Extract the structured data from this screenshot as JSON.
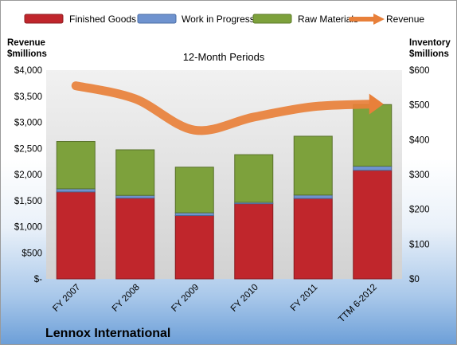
{
  "chart_data": {
    "type": "bar",
    "stacked": true,
    "title": "Lennox International",
    "subtitle": "12-Month Periods",
    "categories": [
      "FY 2007",
      "FY 2008",
      "FY 2009",
      "FY 2010",
      "FY 2011",
      "TTM 6-2012"
    ],
    "left_axis": {
      "label_line1": "Revenue",
      "label_line2": "$millions",
      "ylim": [
        0,
        4000
      ],
      "ticks": [
        0,
        500,
        1000,
        1500,
        2000,
        2500,
        3000,
        3500,
        4000
      ],
      "tick_labels": [
        "$-",
        "$500",
        "$1,000",
        "$1,500",
        "$2,000",
        "$2,500",
        "$3,000",
        "$3,500",
        "$4,000"
      ]
    },
    "right_axis": {
      "label_line1": "Inventory",
      "label_line2": "$millions",
      "ylim": [
        0,
        600
      ],
      "ticks": [
        0,
        100,
        200,
        300,
        400,
        500,
        600
      ],
      "tick_labels": [
        "$0",
        "$100",
        "$200",
        "$300",
        "$400",
        "$500",
        "$600"
      ]
    },
    "series": [
      {
        "name": "Finished Goods",
        "axis": "right",
        "kind": "bar",
        "color": "#c0262c",
        "values": [
          250,
          232,
          182,
          216,
          231,
          312
        ]
      },
      {
        "name": "Work in Progress",
        "axis": "right",
        "kind": "bar",
        "color": "#6f93cf",
        "values": [
          9,
          8,
          8,
          4,
          10,
          12
        ]
      },
      {
        "name": "Raw Materials",
        "axis": "right",
        "kind": "bar",
        "color": "#7da13c",
        "values": [
          136,
          131,
          131,
          137,
          169,
          177
        ]
      },
      {
        "name": "Revenue",
        "axis": "left",
        "kind": "line",
        "color": "#e8803a",
        "values": [
          3700,
          3450,
          2850,
          3100,
          3300,
          3350
        ]
      }
    ],
    "grid": false,
    "legend_position": "top"
  }
}
